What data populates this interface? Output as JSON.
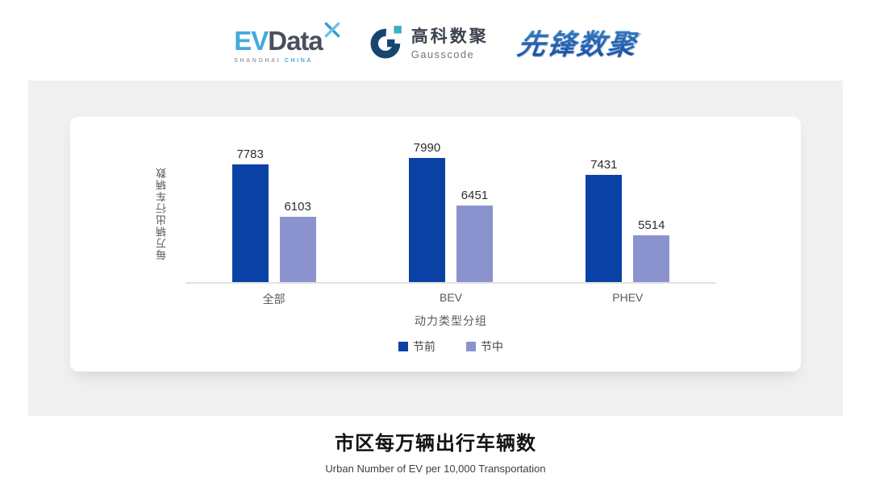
{
  "header": {
    "evdata": {
      "ev": "EV",
      "data": "Data",
      "sub_left": "SHANGHAI",
      "sub_right": "CHINA"
    },
    "gausscode": {
      "cn": "高科数聚",
      "en": "Gausscode"
    },
    "pioneer": {
      "text": "先锋数聚"
    }
  },
  "colors": {
    "series_pre_holiday": "#0A41A5",
    "series_mid_holiday": "#8B93CE",
    "panel_bg": "#F0F0F0",
    "axis_line": "#E2E2E2",
    "evdata_blue": "#45A9DC",
    "evdata_dark": "#47515C",
    "gauss_navy": "#16466E",
    "gauss_teal": "#35B3C0",
    "pioneer_blue": "#2E77C8"
  },
  "chart_data": {
    "type": "bar",
    "title": "市区每万辆出行车辆数",
    "subtitle": "Urban Number of EV per 10,000 Transportation",
    "categories": [
      "全部",
      "BEV",
      "PHEV"
    ],
    "series": [
      {
        "name": "节前",
        "color": "#0A41A5",
        "values": [
          7783,
          7990,
          7431
        ]
      },
      {
        "name": "节中",
        "color": "#8B93CE",
        "values": [
          6103,
          6451,
          5514
        ]
      }
    ],
    "xlabel": "动力类型分组",
    "ylabel": "每万辆出行车辆数",
    "ylim": [
      4000,
      8400
    ],
    "grid": false,
    "legend_position": "bottom",
    "value_labels": true
  }
}
